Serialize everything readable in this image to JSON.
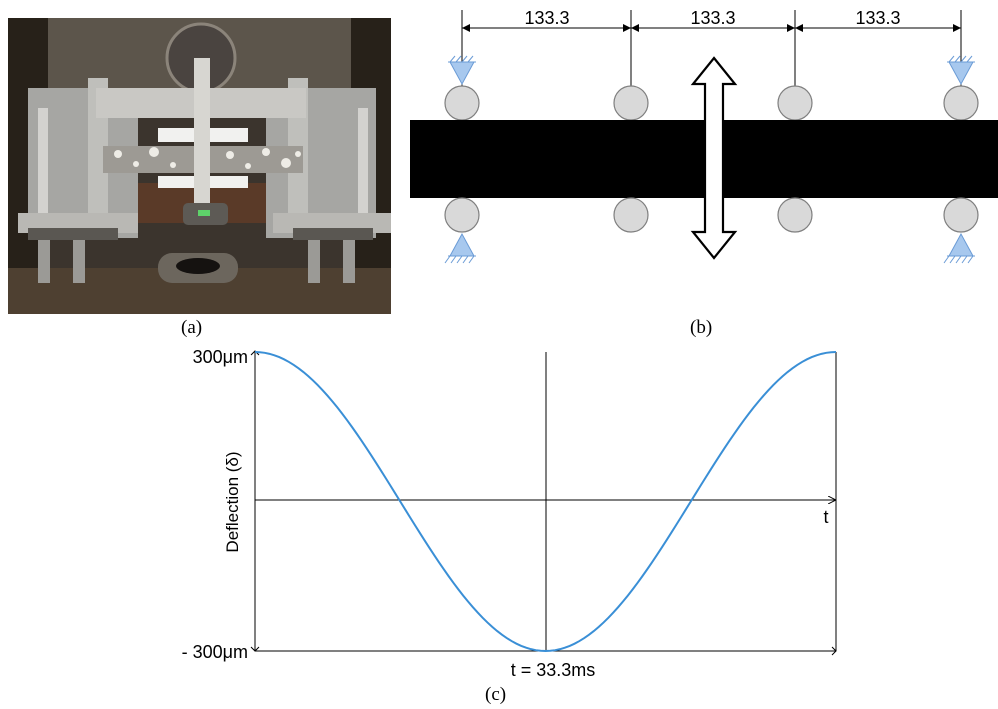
{
  "panels": {
    "a": "(a)",
    "b": "(b)",
    "c": "(c)"
  },
  "support_diagram": {
    "spans": [
      "133.3",
      "133.3",
      "133.3"
    ]
  },
  "chart_data": {
    "type": "line",
    "ylabel": "Deflection (δ)",
    "xlabel": "t",
    "y_top_label": "300μm",
    "y_bottom_label": "- 300μm",
    "period_label": "t = 33.3ms",
    "period_ms": 33.3,
    "amplitude_um": 300,
    "series": [
      {
        "x": [
          0,
          4.16,
          8.33,
          12.49,
          16.65,
          20.81,
          24.98,
          29.14,
          33.3
        ],
        "y": [
          300,
          212,
          0,
          -212,
          -300,
          -212,
          0,
          212,
          300
        ]
      }
    ],
    "ylim": [
      -300,
      300
    ],
    "xlim": [
      0,
      33.3
    ],
    "line_color": "#3a8fd6"
  }
}
